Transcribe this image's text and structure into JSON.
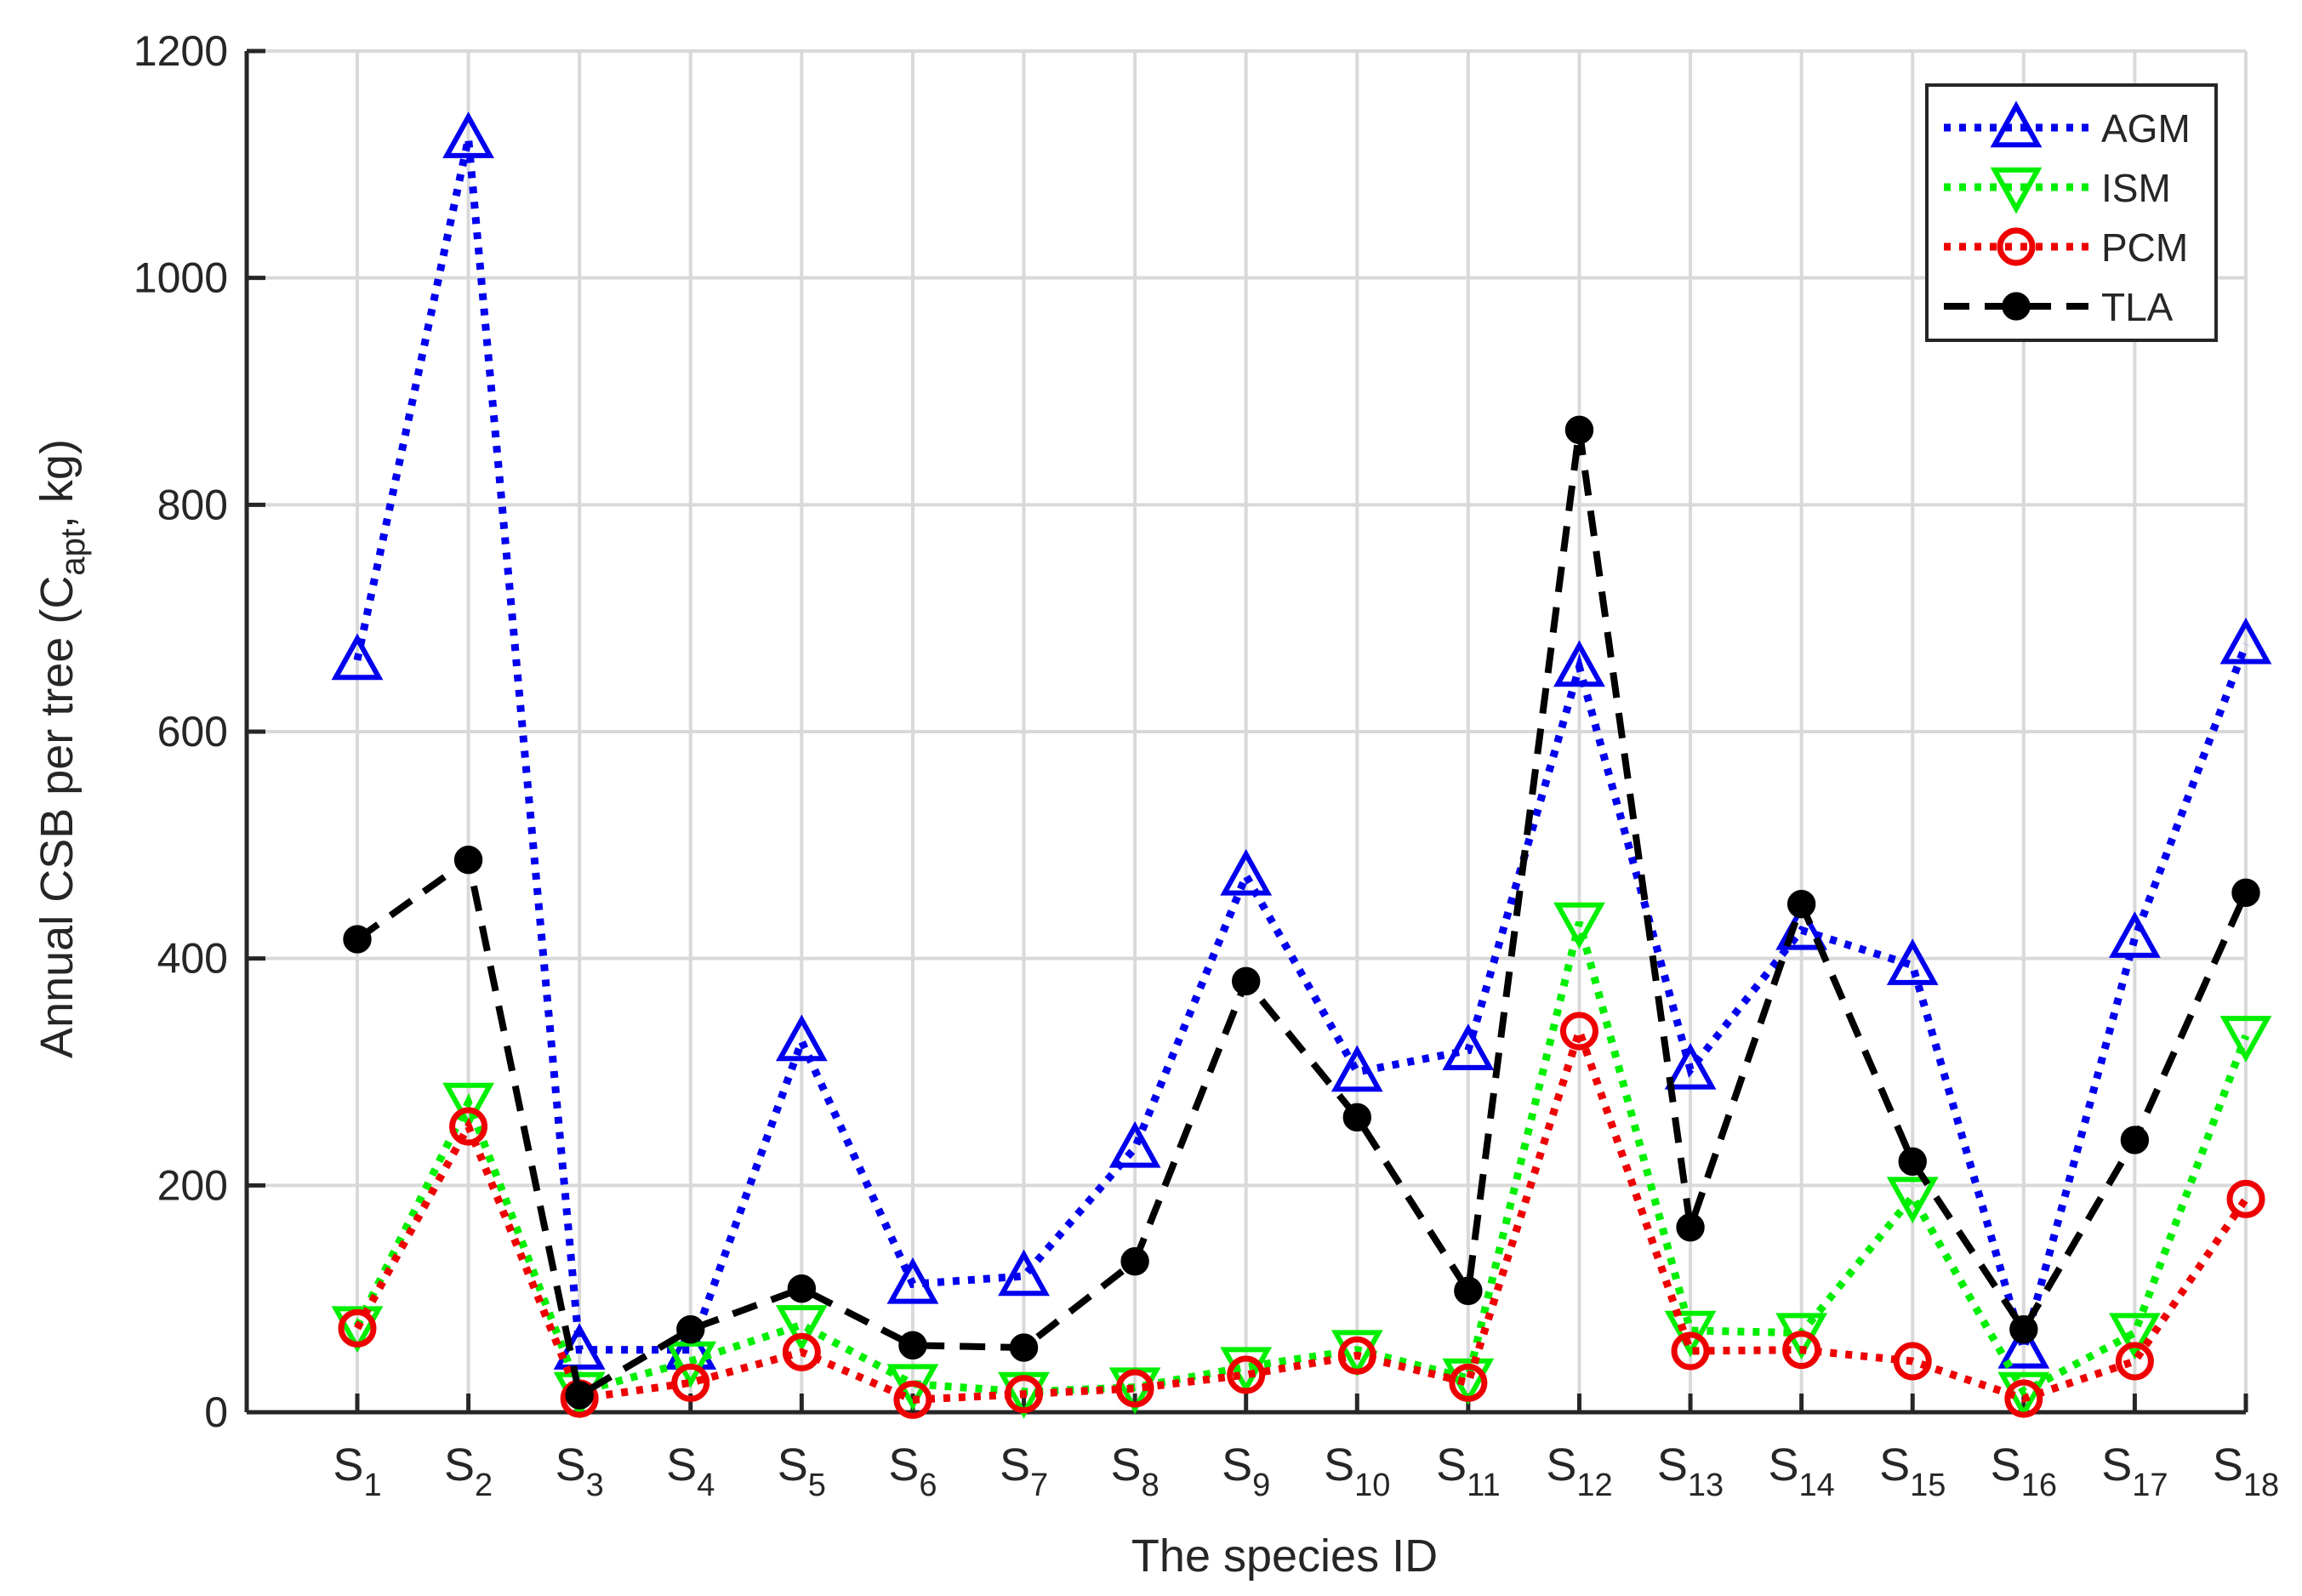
{
  "chart_data": {
    "type": "line",
    "xlabel": "The species ID",
    "ylabel": {
      "prefix": "Annual CSB per tree (C",
      "subscript": "apt",
      "suffix": ", kg)"
    },
    "ylim": [
      0,
      1200
    ],
    "yticks": [
      0,
      200,
      400,
      600,
      800,
      1000,
      1200
    ],
    "grid": true,
    "legend_position": "top-right",
    "categories": [
      {
        "base": "S",
        "sub": "1"
      },
      {
        "base": "S",
        "sub": "2"
      },
      {
        "base": "S",
        "sub": "3"
      },
      {
        "base": "S",
        "sub": "4"
      },
      {
        "base": "S",
        "sub": "5"
      },
      {
        "base": "S",
        "sub": "6"
      },
      {
        "base": "S",
        "sub": "7"
      },
      {
        "base": "S",
        "sub": "8"
      },
      {
        "base": "S",
        "sub": "9"
      },
      {
        "base": "S",
        "sub": "10"
      },
      {
        "base": "S",
        "sub": "11"
      },
      {
        "base": "S",
        "sub": "12"
      },
      {
        "base": "S",
        "sub": "13"
      },
      {
        "base": "S",
        "sub": "14"
      },
      {
        "base": "S",
        "sub": "15"
      },
      {
        "base": "S",
        "sub": "16"
      },
      {
        "base": "S",
        "sub": "17"
      },
      {
        "base": "S",
        "sub": "18"
      }
    ],
    "series": [
      {
        "name": "AGM",
        "color": "#0000ee",
        "line_style": "dotted",
        "marker": "triangle-up",
        "values": [
          663,
          1123,
          55,
          55,
          327,
          113,
          120,
          233,
          473,
          300,
          319,
          657,
          302,
          425,
          394,
          56,
          418,
          677
        ]
      },
      {
        "name": "ISM",
        "color": "#00ee00",
        "line_style": "dotted",
        "marker": "triangle-down",
        "values": [
          76,
          273,
          18,
          45,
          77,
          25,
          18,
          22,
          40,
          55,
          30,
          432,
          72,
          70,
          190,
          18,
          70,
          332
        ]
      },
      {
        "name": "PCM",
        "color": "#ee0000",
        "line_style": "dotted",
        "marker": "circle-open",
        "values": [
          74,
          252,
          12,
          26,
          53,
          11,
          16,
          21,
          33,
          50,
          26,
          336,
          54,
          55,
          45,
          12,
          45,
          188
        ]
      },
      {
        "name": "TLA",
        "color": "#000000",
        "line_style": "dashed",
        "marker": "circle-filled",
        "values": [
          417,
          487,
          15,
          73,
          109,
          59,
          57,
          133,
          380,
          260,
          107,
          866,
          163,
          448,
          221,
          73,
          240,
          458
        ]
      }
    ]
  }
}
